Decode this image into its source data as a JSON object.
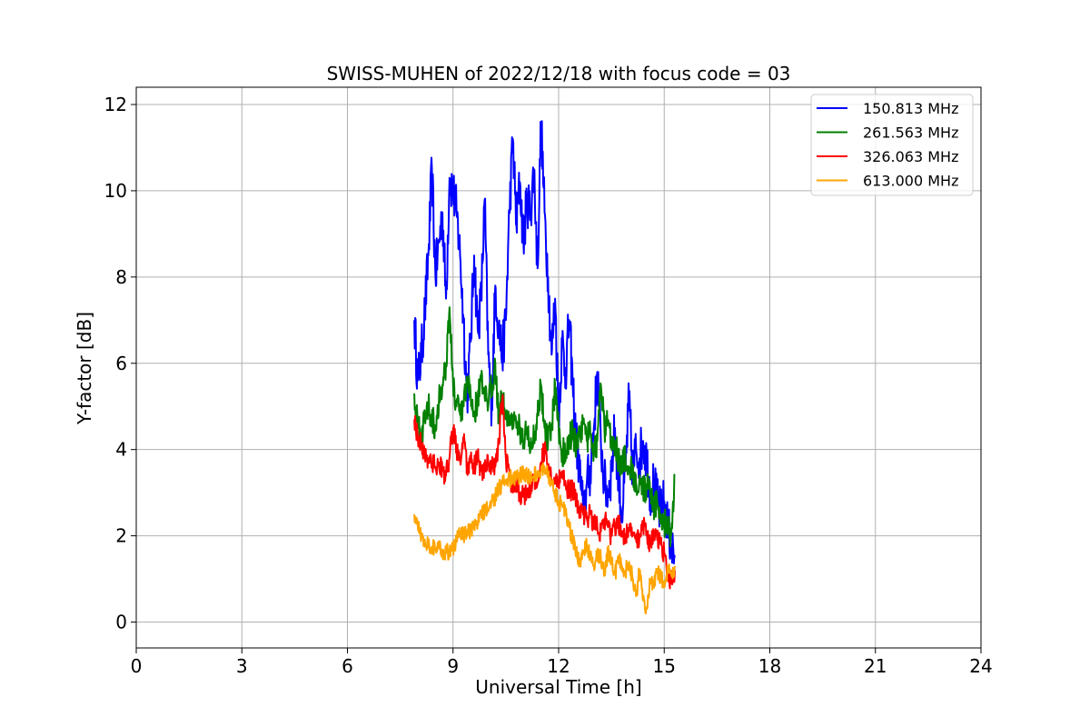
{
  "chart_data": {
    "type": "line",
    "title": "SWISS-MUHEN of 2022/12/18 with focus code = 03",
    "xlabel": "Universal Time [h]",
    "ylabel": "Y-factor [dB]",
    "xlim": [
      0,
      24
    ],
    "ylim": [
      -0.6,
      12.4
    ],
    "x_ticks": [
      0,
      3,
      6,
      9,
      12,
      15,
      18,
      21,
      24
    ],
    "y_ticks": [
      0,
      2,
      4,
      6,
      8,
      10,
      12
    ],
    "grid": true,
    "legend_position": "top-right",
    "series": [
      {
        "name": "150.813 MHz",
        "color": "#0000ff",
        "x": [
          7.9,
          8.0,
          8.1,
          8.2,
          8.3,
          8.4,
          8.5,
          8.6,
          8.7,
          8.8,
          8.9,
          9.0,
          9.1,
          9.2,
          9.3,
          9.4,
          9.5,
          9.6,
          9.7,
          9.8,
          9.9,
          10.0,
          10.1,
          10.2,
          10.3,
          10.4,
          10.5,
          10.6,
          10.7,
          10.8,
          10.9,
          11.0,
          11.1,
          11.2,
          11.3,
          11.4,
          11.5,
          11.6,
          11.7,
          11.8,
          11.9,
          12.0,
          12.1,
          12.2,
          12.3,
          12.4,
          12.5,
          12.6,
          12.7,
          12.8,
          12.9,
          13.0,
          13.1,
          13.2,
          13.3,
          13.4,
          13.5,
          13.6,
          13.7,
          13.8,
          13.9,
          14.0,
          14.1,
          14.2,
          14.3,
          14.4,
          14.5,
          14.6,
          14.7,
          14.8,
          14.9,
          15.0,
          15.1,
          15.2,
          15.3
        ],
        "values": [
          7.0,
          5.6,
          6.2,
          7.2,
          8.5,
          10.5,
          8.0,
          8.8,
          9.5,
          7.5,
          10.3,
          10.0,
          9.5,
          8.5,
          7.0,
          5.2,
          6.5,
          8.5,
          6.8,
          7.5,
          9.8,
          6.2,
          5.0,
          7.8,
          6.8,
          6.2,
          7.0,
          9.5,
          11.2,
          9.2,
          10.2,
          8.8,
          9.8,
          9.5,
          10.5,
          8.2,
          11.6,
          9.5,
          8.0,
          6.2,
          7.5,
          4.8,
          6.5,
          5.8,
          7.0,
          5.5,
          4.2,
          3.5,
          2.5,
          3.2,
          3.5,
          4.5,
          5.8,
          4.2,
          3.2,
          3.0,
          3.5,
          4.5,
          3.3,
          2.5,
          3.5,
          5.2,
          3.5,
          4.0,
          3.8,
          4.2,
          3.8,
          3.0,
          3.2,
          2.8,
          2.5,
          2.8,
          2.2,
          1.8,
          1.5
        ]
      },
      {
        "name": "261.563 MHz",
        "color": "#008000",
        "x": [
          7.9,
          8.0,
          8.1,
          8.2,
          8.3,
          8.4,
          8.5,
          8.6,
          8.7,
          8.8,
          8.9,
          9.0,
          9.1,
          9.2,
          9.3,
          9.4,
          9.5,
          9.6,
          9.7,
          9.8,
          9.9,
          10.0,
          10.1,
          10.2,
          10.3,
          10.4,
          10.5,
          10.6,
          10.7,
          10.8,
          10.9,
          11.0,
          11.1,
          11.2,
          11.3,
          11.4,
          11.5,
          11.6,
          11.7,
          11.8,
          11.9,
          12.0,
          12.1,
          12.2,
          12.3,
          12.4,
          12.5,
          12.6,
          12.7,
          12.8,
          12.9,
          13.0,
          13.1,
          13.2,
          13.3,
          13.4,
          13.5,
          13.6,
          13.7,
          13.8,
          13.9,
          14.0,
          14.1,
          14.2,
          14.3,
          14.4,
          14.5,
          14.6,
          14.7,
          14.8,
          14.9,
          15.0,
          15.1,
          15.2,
          15.3
        ],
        "values": [
          5.3,
          4.5,
          4.3,
          4.8,
          5.0,
          4.8,
          4.5,
          5.2,
          5.5,
          6.0,
          7.3,
          5.5,
          5.0,
          4.8,
          5.0,
          5.5,
          5.3,
          4.8,
          5.2,
          5.6,
          5.2,
          5.0,
          5.5,
          6.0,
          4.8,
          5.2,
          4.7,
          4.8,
          4.8,
          4.5,
          4.5,
          4.2,
          4.5,
          4.0,
          4.3,
          4.8,
          5.5,
          4.5,
          4.2,
          4.5,
          5.5,
          4.5,
          4.0,
          3.8,
          4.2,
          4.5,
          4.0,
          4.3,
          4.6,
          4.2,
          4.4,
          4.0,
          4.2,
          5.5,
          4.5,
          4.6,
          4.3,
          4.2,
          3.8,
          3.6,
          3.8,
          3.6,
          3.5,
          3.2,
          3.4,
          3.0,
          3.2,
          2.9,
          2.6,
          2.8,
          2.5,
          2.3,
          2.2,
          2.0,
          3.4
        ]
      },
      {
        "name": "326.063 MHz",
        "color": "#ff0000",
        "x": [
          7.9,
          8.0,
          8.1,
          8.2,
          8.3,
          8.4,
          8.5,
          8.6,
          8.7,
          8.8,
          8.9,
          9.0,
          9.1,
          9.2,
          9.3,
          9.4,
          9.5,
          9.6,
          9.7,
          9.8,
          9.9,
          10.0,
          10.1,
          10.2,
          10.3,
          10.4,
          10.5,
          10.6,
          10.7,
          10.8,
          10.9,
          11.0,
          11.1,
          11.2,
          11.3,
          11.4,
          11.5,
          11.6,
          11.7,
          11.8,
          11.9,
          12.0,
          12.1,
          12.2,
          12.3,
          12.4,
          12.5,
          12.6,
          12.7,
          12.8,
          12.9,
          13.0,
          13.1,
          13.2,
          13.3,
          13.4,
          13.5,
          13.6,
          13.7,
          13.8,
          13.9,
          14.0,
          14.1,
          14.2,
          14.3,
          14.4,
          14.5,
          14.6,
          14.7,
          14.8,
          14.9,
          15.0,
          15.1,
          15.2,
          15.3
        ],
        "values": [
          4.7,
          4.3,
          4.1,
          3.9,
          3.8,
          3.7,
          3.6,
          3.7,
          3.5,
          3.4,
          3.8,
          4.5,
          4.0,
          3.8,
          4.2,
          3.6,
          3.7,
          3.6,
          3.8,
          3.5,
          3.5,
          3.7,
          3.6,
          3.6,
          4.2,
          5.2,
          3.8,
          3.5,
          3.0,
          3.2,
          3.0,
          2.9,
          3.1,
          3.0,
          3.3,
          3.2,
          3.7,
          4.0,
          3.5,
          3.3,
          3.2,
          3.3,
          3.5,
          3.2,
          3.0,
          3.1,
          2.8,
          2.6,
          2.5,
          2.4,
          2.5,
          2.3,
          2.2,
          2.1,
          2.4,
          2.2,
          2.0,
          2.2,
          2.3,
          2.1,
          2.0,
          2.1,
          2.0,
          1.9,
          2.0,
          2.3,
          2.1,
          1.8,
          2.0,
          1.9,
          1.8,
          1.6,
          1.0,
          0.9,
          1.2
        ]
      },
      {
        "name": "613.000 MHz",
        "color": "#ffa500",
        "x": [
          7.9,
          8.0,
          8.1,
          8.2,
          8.3,
          8.4,
          8.5,
          8.6,
          8.7,
          8.8,
          8.9,
          9.0,
          9.1,
          9.2,
          9.3,
          9.4,
          9.5,
          9.6,
          9.7,
          9.8,
          9.9,
          10.0,
          10.1,
          10.2,
          10.3,
          10.4,
          10.5,
          10.6,
          10.7,
          10.8,
          10.9,
          11.0,
          11.1,
          11.2,
          11.3,
          11.4,
          11.5,
          11.6,
          11.7,
          11.8,
          11.9,
          12.0,
          12.1,
          12.2,
          12.3,
          12.4,
          12.5,
          12.6,
          12.7,
          12.8,
          12.9,
          13.0,
          13.1,
          13.2,
          13.3,
          13.4,
          13.5,
          13.6,
          13.7,
          13.8,
          13.9,
          14.0,
          14.1,
          14.2,
          14.3,
          14.4,
          14.5,
          14.6,
          14.7,
          14.8,
          14.9,
          15.0,
          15.1,
          15.2,
          15.3
        ],
        "values": [
          2.5,
          2.2,
          2.0,
          1.9,
          1.8,
          1.75,
          1.7,
          1.7,
          1.65,
          1.6,
          1.65,
          1.7,
          1.9,
          2.1,
          2.0,
          2.1,
          2.1,
          2.15,
          2.3,
          2.5,
          2.6,
          2.6,
          2.8,
          2.9,
          3.1,
          3.2,
          3.3,
          3.3,
          3.4,
          3.3,
          3.4,
          3.5,
          3.4,
          3.3,
          3.4,
          3.5,
          3.5,
          3.6,
          3.4,
          3.2,
          3.0,
          2.8,
          2.7,
          2.5,
          2.2,
          1.9,
          1.6,
          1.4,
          1.6,
          1.8,
          1.5,
          1.3,
          1.6,
          1.5,
          1.2,
          1.6,
          1.4,
          1.1,
          1.5,
          1.3,
          1.2,
          1.4,
          1.0,
          0.6,
          1.2,
          0.5,
          0.3,
          1.0,
          0.8,
          1.2,
          1.0,
          0.9,
          1.2,
          1.1,
          1.3
        ]
      }
    ]
  }
}
